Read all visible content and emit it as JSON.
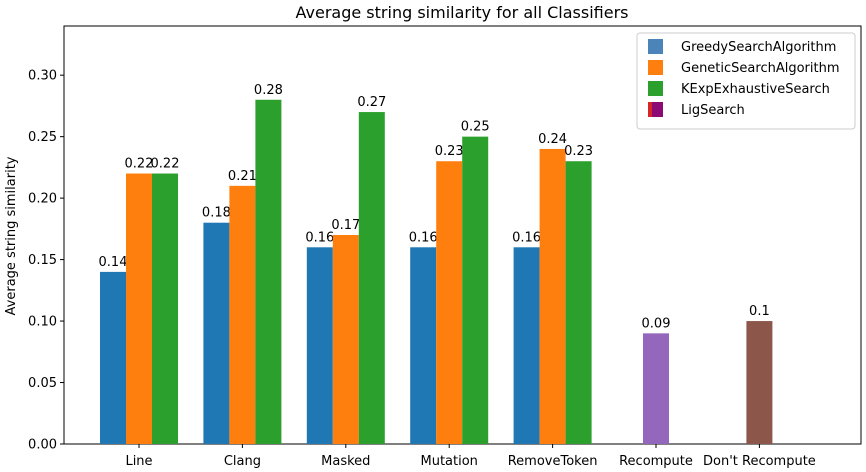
{
  "chart_data": {
    "type": "bar",
    "title": "Average string similarity for all Classifiers",
    "xlabel": "",
    "ylabel": "Average string similarity",
    "ylim": [
      0,
      0.34
    ],
    "yticks": [
      "0.00",
      "0.05",
      "0.10",
      "0.15",
      "0.20",
      "0.25",
      "0.30"
    ],
    "grid": false,
    "legend_position": "top-right",
    "categories": [
      "Line",
      "Clang",
      "Masked",
      "Mutation",
      "RemoveToken",
      "Recompute",
      "Don't Recompute"
    ],
    "series": [
      {
        "name": "GreedySearchAlgorithm",
        "color": "#1f77b4",
        "values": [
          0.14,
          0.18,
          0.16,
          0.16,
          0.16,
          null,
          null
        ],
        "labels": [
          "0.14",
          "0.18",
          "0.16",
          "0.16",
          "0.16",
          null,
          null
        ]
      },
      {
        "name": "GeneticSearchAlgorithm",
        "color": "#ff7f0e",
        "values": [
          0.22,
          0.21,
          0.17,
          0.23,
          0.24,
          null,
          null
        ],
        "labels": [
          "0.22",
          "0.21",
          "0.17",
          "0.23",
          "0.24",
          null,
          null
        ]
      },
      {
        "name": "KExpExhaustiveSearch",
        "color": "#2ca02c",
        "values": [
          0.22,
          0.28,
          0.27,
          0.25,
          0.23,
          null,
          null
        ],
        "labels": [
          "0.22",
          "0.28",
          "0.27",
          "0.25",
          "0.23",
          null,
          null
        ]
      }
    ],
    "single_bars": [
      {
        "category": "Recompute",
        "value": 0.09,
        "label": "0.09",
        "color": "#9467bd"
      },
      {
        "category": "Don't Recompute",
        "value": 0.1,
        "label": "0.1",
        "color": "#8c564b"
      }
    ],
    "legend": [
      {
        "label": "GreedySearchAlgorithm",
        "color": "#4a84b8"
      },
      {
        "label": "GeneticSearchAlgorithm",
        "color": "#ff7f0e"
      },
      {
        "label": "KExpExhaustiveSearch",
        "color": "#2ca02c"
      },
      {
        "label": "LigSearch",
        "color": "#8b0a73",
        "accent": "#d62728"
      }
    ]
  }
}
